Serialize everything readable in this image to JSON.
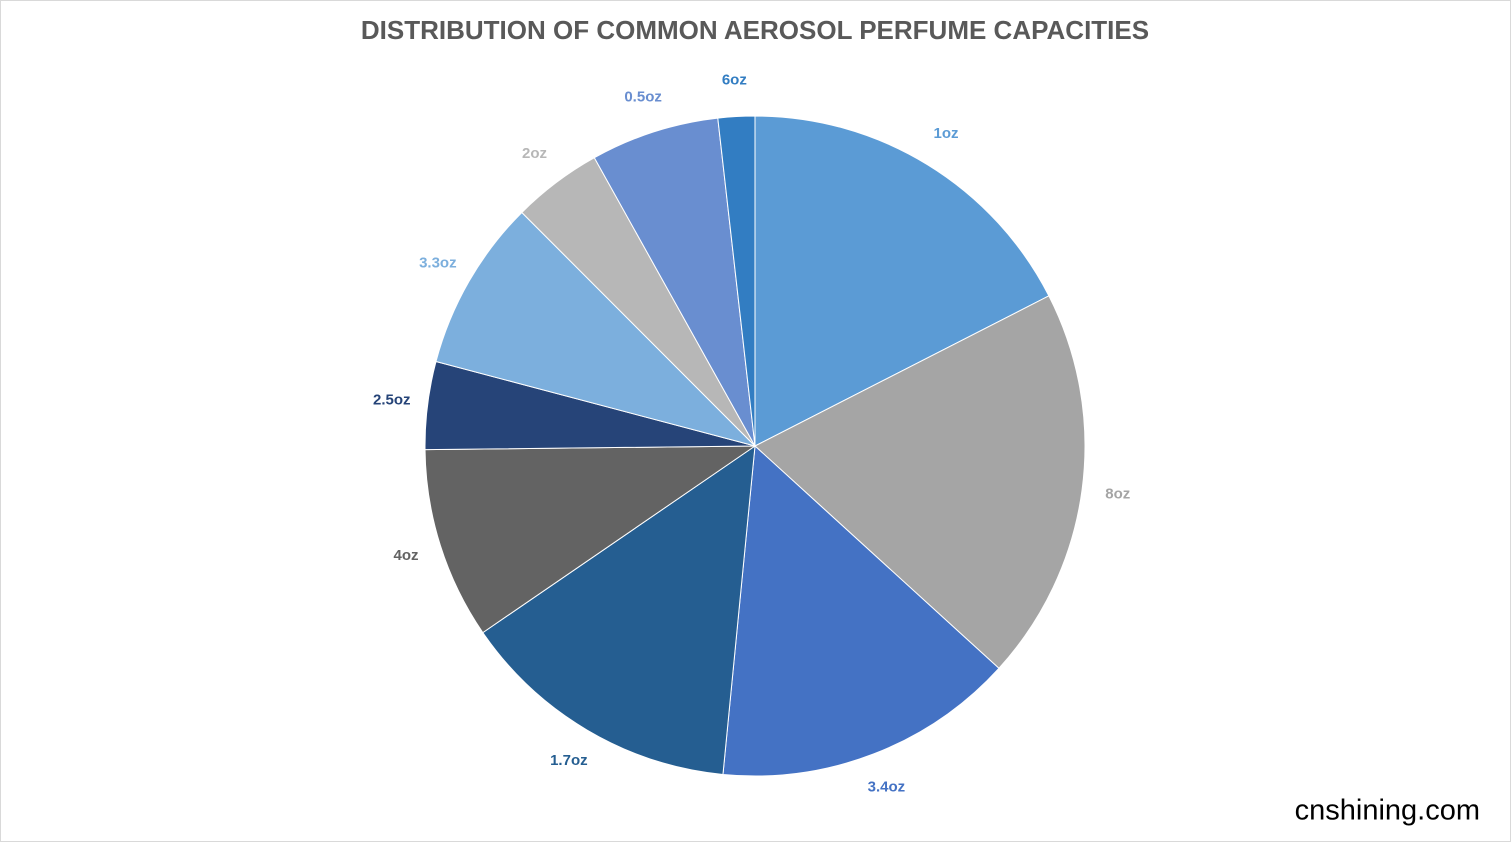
{
  "chart_data": {
    "type": "pie",
    "title": "DISTRIBUTION OF COMMON AEROSOL PERFUME CAPACITIES",
    "categories": [
      "1oz",
      "8oz",
      "3.4oz",
      "1.7oz",
      "4oz",
      "2.5oz",
      "3.3oz",
      "2oz",
      "0.5oz",
      "6oz"
    ],
    "values": [
      17.5,
      19.3,
      14.8,
      13.9,
      9.4,
      4.3,
      8.4,
      4.4,
      6.3,
      1.8
    ],
    "colors": [
      "#5b9bd5",
      "#a5a5a5",
      "#4472c4",
      "#255e91",
      "#636363",
      "#264478",
      "#7cafdd",
      "#b7b7b7",
      "#698ed0",
      "#327dc2"
    ]
  },
  "watermark": "cnshining.com"
}
